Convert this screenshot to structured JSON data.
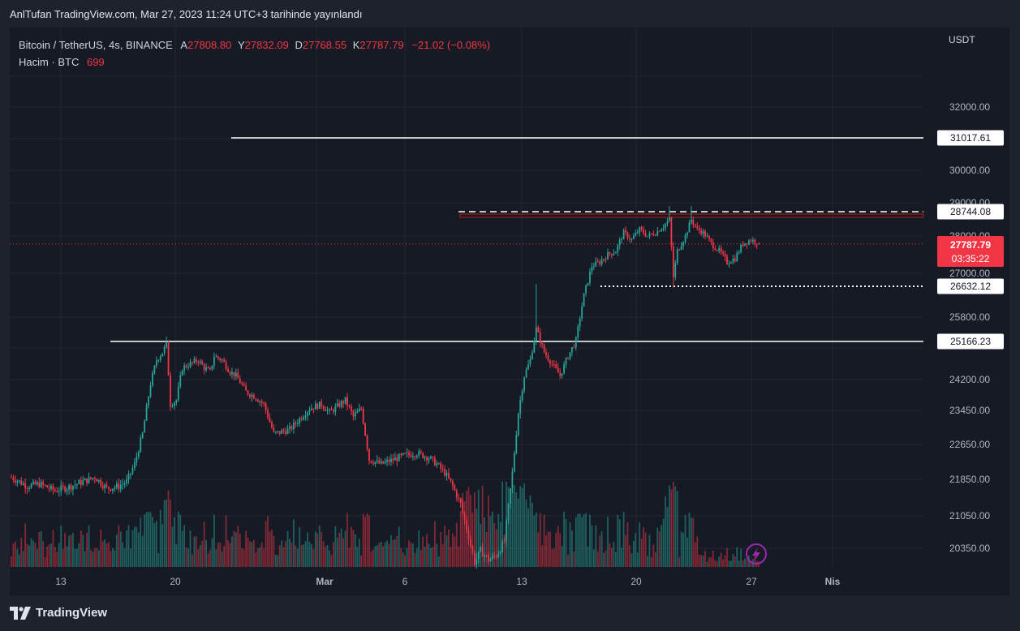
{
  "header": {
    "publish_line": "AnlTufan TradingView.com, Mar 27, 2023 11:24 UTC+3 tarihinde yayınlandı"
  },
  "legend": {
    "symbol": "Bitcoin / TetherUS, 4s, BINANCE",
    "open_label": "A",
    "open": "27808.80",
    "high_label": "Y",
    "high": "27832.09",
    "low_label": "D",
    "low": "27768.55",
    "close_label": "K",
    "close": "27787.79",
    "change": "−21.02 (−0.08%)",
    "volume_label": "Hacim · BTC",
    "volume": "699"
  },
  "axis": {
    "unit": "USDT"
  },
  "footer": {
    "brand": "TradingView"
  },
  "colors": {
    "up": "#26a69a",
    "down": "#f23645",
    "level_line": "#ffffff",
    "current_price_bg": "#f23645",
    "zone_border": "#b71c1c"
  },
  "chart_data": {
    "type": "candlestick",
    "price_ticks": [
      "32000.00",
      "30000.00",
      "29000.00",
      "28000.00",
      "27000.00",
      "25800.00",
      "24200.00",
      "23450.00",
      "22650.00",
      "21850.00",
      "21050.00",
      "20350.00"
    ],
    "time_ticks": [
      {
        "label": "13",
        "bold": false
      },
      {
        "label": "20",
        "bold": false
      },
      {
        "label": "Mar",
        "bold": true
      },
      {
        "label": "6",
        "bold": false
      },
      {
        "label": "13",
        "bold": false
      },
      {
        "label": "20",
        "bold": false
      },
      {
        "label": "27",
        "bold": false
      },
      {
        "label": "Nis",
        "bold": true
      }
    ],
    "levels": [
      {
        "price": "31017.61",
        "style": "solid"
      },
      {
        "price": "28744.08",
        "style": "dashed"
      },
      {
        "price": "26632.12",
        "style": "dotted"
      },
      {
        "price": "25166.23",
        "style": "solid"
      }
    ],
    "current_price": {
      "price": "27787.79",
      "countdown": "03:35:22"
    },
    "path": [
      [
        0,
        21900
      ],
      [
        8,
        21700
      ],
      [
        14,
        21750
      ],
      [
        22,
        21600
      ],
      [
        30,
        21700
      ],
      [
        36,
        21800
      ],
      [
        42,
        21900
      ],
      [
        48,
        21650
      ],
      [
        54,
        21700
      ],
      [
        58,
        21800
      ],
      [
        62,
        22200
      ],
      [
        66,
        22900
      ],
      [
        70,
        24100
      ],
      [
        73,
        24700
      ],
      [
        76,
        24900
      ],
      [
        78,
        25100
      ],
      [
        80,
        23600
      ],
      [
        83,
        23700
      ],
      [
        86,
        24500
      ],
      [
        90,
        24600
      ],
      [
        94,
        24700
      ],
      [
        97,
        24500
      ],
      [
        100,
        24400
      ],
      [
        102,
        24800
      ],
      [
        106,
        24700
      ],
      [
        110,
        24400
      ],
      [
        113,
        24300
      ],
      [
        118,
        23900
      ],
      [
        122,
        23800
      ],
      [
        127,
        23600
      ],
      [
        132,
        22900
      ],
      [
        140,
        23000
      ],
      [
        146,
        23300
      ],
      [
        150,
        23500
      ],
      [
        156,
        23600
      ],
      [
        160,
        23400
      ],
      [
        164,
        23550
      ],
      [
        168,
        23700
      ],
      [
        172,
        23300
      ],
      [
        176,
        23500
      ],
      [
        180,
        22300
      ],
      [
        186,
        22200
      ],
      [
        192,
        22300
      ],
      [
        198,
        22400
      ],
      [
        204,
        22450
      ],
      [
        210,
        22350
      ],
      [
        214,
        22200
      ],
      [
        218,
        22000
      ],
      [
        222,
        21700
      ],
      [
        226,
        21300
      ],
      [
        230,
        20600
      ],
      [
        233,
        20050
      ],
      [
        236,
        20300
      ],
      [
        240,
        20100
      ],
      [
        244,
        20200
      ],
      [
        248,
        20500
      ],
      [
        252,
        22000
      ],
      [
        255,
        23400
      ],
      [
        258,
        24300
      ],
      [
        261,
        24700
      ],
      [
        264,
        25500
      ],
      [
        268,
        24900
      ],
      [
        272,
        24600
      ],
      [
        276,
        24300
      ],
      [
        280,
        24800
      ],
      [
        284,
        25200
      ],
      [
        288,
        26400
      ],
      [
        292,
        27200
      ],
      [
        296,
        27300
      ],
      [
        300,
        27500
      ],
      [
        304,
        27600
      ],
      [
        308,
        28100
      ],
      [
        312,
        27900
      ],
      [
        316,
        28200
      ],
      [
        320,
        28000
      ],
      [
        324,
        28100
      ],
      [
        328,
        28300
      ],
      [
        331,
        28500
      ],
      [
        333,
        26900
      ],
      [
        335,
        27600
      ],
      [
        339,
        28000
      ],
      [
        342,
        28500
      ],
      [
        345,
        28200
      ],
      [
        348,
        28100
      ],
      [
        352,
        27800
      ],
      [
        356,
        27600
      ],
      [
        360,
        27300
      ],
      [
        364,
        27400
      ],
      [
        368,
        27800
      ],
      [
        372,
        27900
      ],
      [
        376,
        27800
      ]
    ]
  }
}
